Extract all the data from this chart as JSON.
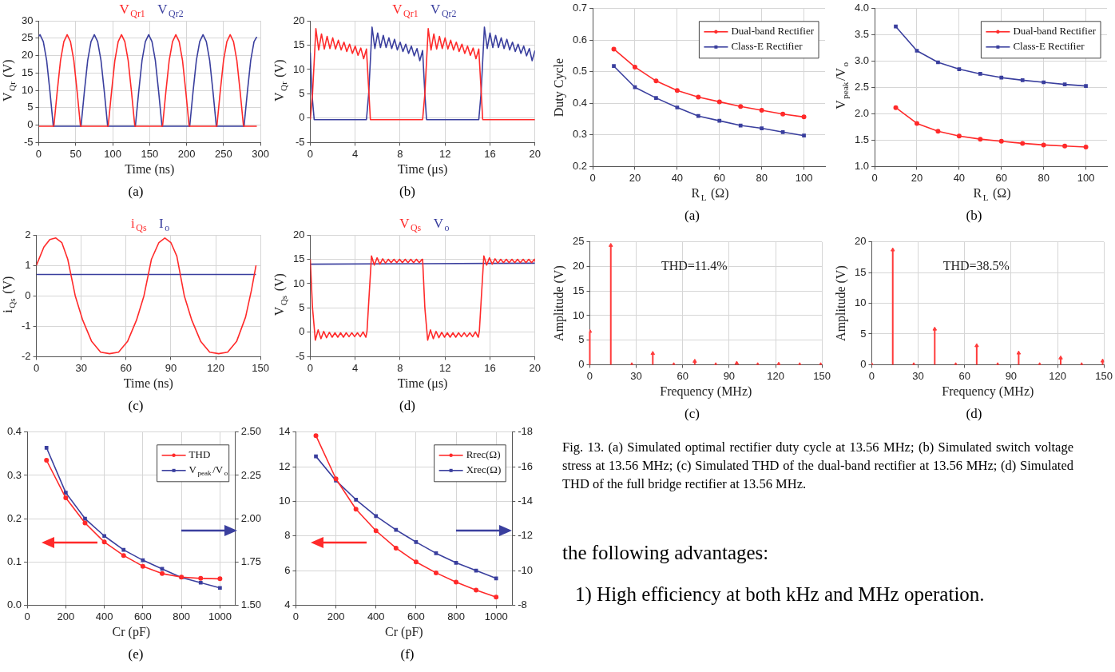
{
  "chart_data": [
    {
      "type": "line",
      "xlabel": "Time (ns)",
      "ylabel": "V$_{Qr}$ (V)",
      "subtitle": "(a)",
      "xlim": [
        0,
        300
      ],
      "xticks": [
        0,
        50,
        100,
        150,
        200,
        250,
        300
      ],
      "ylim": [
        -5,
        30
      ],
      "yticks": [
        -5,
        0,
        5,
        10,
        15,
        20,
        25,
        30
      ],
      "grid": true,
      "series": [
        {
          "name": "V$_{Qr1}$",
          "color": "#ff2a2a",
          "x": [
            0,
            20.5,
            25,
            29.5,
            34,
            38.5,
            43,
            47.5,
            52,
            56.5,
            94,
            98.5,
            103,
            107.5,
            112,
            116.5,
            121,
            125.5,
            130,
            167.5,
            172,
            176.5,
            181,
            185.5,
            190,
            194.5,
            199,
            203.5,
            241,
            245.5,
            250,
            254.5,
            259,
            263.5,
            268,
            272.5,
            277,
            295
          ],
          "values": [
            -0.3,
            -0.3,
            9.6,
            18.6,
            24,
            26,
            24,
            18.6,
            9.6,
            -0.3,
            -0.3,
            9.6,
            18.6,
            24,
            26,
            24,
            18.6,
            9.6,
            -0.3,
            -0.3,
            9.6,
            18.6,
            24,
            26,
            24,
            18.6,
            9.6,
            -0.3,
            -0.3,
            9.6,
            18.6,
            24,
            26,
            24,
            18.6,
            9.6,
            -0.3,
            -0.3
          ]
        },
        {
          "name": "V$_{Qr2}$",
          "color": "#3a3f9e",
          "x": [
            0,
            1.75,
            6.25,
            10.75,
            15.25,
            19.75,
            57.25,
            61.75,
            66.25,
            70.75,
            75.25,
            79.75,
            84.25,
            88.75,
            93.25,
            130.75,
            135.25,
            139.75,
            144.25,
            148.75,
            153.25,
            157.75,
            162.25,
            166.75,
            204.25,
            208.75,
            213.25,
            217.75,
            222.25,
            226.75,
            231.25,
            235.75,
            240.25,
            277.75,
            282.25,
            286.75,
            291.25,
            295
          ],
          "values": [
            25.5,
            26,
            24,
            18.6,
            9.6,
            -0.3,
            -0.3,
            9.6,
            18.6,
            24,
            26,
            24,
            18.6,
            9.6,
            -0.3,
            -0.3,
            9.6,
            18.6,
            24,
            26,
            24,
            18.6,
            9.6,
            -0.3,
            -0.3,
            9.6,
            18.6,
            24,
            26,
            24,
            18.6,
            9.6,
            -0.3,
            -0.3,
            9.6,
            18.6,
            24,
            25.4
          ]
        }
      ]
    },
    {
      "type": "line",
      "xlabel": "Time (μs)",
      "ylabel": "V$_{Qr}$ (V)",
      "subtitle": "(b)",
      "xlim": [
        0,
        20
      ],
      "xticks": [
        0,
        4,
        8,
        12,
        16,
        20
      ],
      "ylim": [
        -5,
        20
      ],
      "yticks": [
        -5,
        0,
        5,
        10,
        15,
        20
      ],
      "grid": true,
      "series": [
        {
          "name": "V$_{Qr1}$",
          "color": "#ff2a2a",
          "x": [
            0,
            0.2,
            0.5,
            0.75,
            1,
            1.25,
            1.5,
            1.75,
            2,
            2.25,
            2.5,
            2.75,
            3,
            3.25,
            3.5,
            3.75,
            4,
            4.25,
            4.5,
            4.75,
            5,
            5.2,
            5.35,
            10,
            10.2,
            10.5,
            10.75,
            11,
            11.25,
            11.5,
            11.75,
            12,
            12.25,
            12.5,
            12.75,
            13,
            13.25,
            13.5,
            13.75,
            14,
            14.25,
            14.5,
            14.75,
            15,
            15.2,
            15.35,
            20
          ],
          "values": [
            -0.3,
            5,
            18.4,
            14,
            17.3,
            14.2,
            16.8,
            14.3,
            16.5,
            14.2,
            16,
            14,
            15.6,
            13.7,
            15.2,
            13.3,
            14.8,
            12.9,
            14.4,
            12.2,
            14.2,
            6,
            -0.3,
            -0.3,
            5,
            18.4,
            14,
            17.3,
            14.2,
            16.8,
            14.3,
            16.5,
            14.2,
            16,
            14,
            15.6,
            13.7,
            15.2,
            13.3,
            14.8,
            12.9,
            14.4,
            12.2,
            14.2,
            6,
            -0.3,
            -0.3
          ]
        },
        {
          "name": "V$_{Qr2}$",
          "color": "#3a3f9e",
          "x": [
            0,
            0.15,
            0.35,
            5,
            5.2,
            5.5,
            5.75,
            6,
            6.25,
            6.5,
            6.75,
            7,
            7.25,
            7.5,
            7.75,
            8,
            8.25,
            8.5,
            8.75,
            9,
            9.25,
            9.5,
            9.75,
            10,
            10.2,
            10.35,
            15,
            15.2,
            15.5,
            15.75,
            16,
            16.25,
            16.5,
            16.75,
            17,
            17.25,
            17.5,
            17.75,
            18,
            18.25,
            18.5,
            18.75,
            19,
            19.25,
            19.5,
            19.75,
            20
          ],
          "values": [
            13.5,
            5,
            -0.3,
            -0.3,
            5,
            18.7,
            14.3,
            17.5,
            14.5,
            17,
            14.5,
            16.5,
            14.3,
            16.2,
            14,
            15.6,
            13.7,
            15.2,
            13.3,
            14.8,
            12.8,
            14.3,
            11.8,
            13.9,
            5,
            -0.3,
            -0.3,
            5,
            18.7,
            14.3,
            17.5,
            14.5,
            17,
            14.5,
            16.5,
            14.3,
            16.2,
            14,
            15.6,
            13.7,
            15.2,
            13.3,
            14.8,
            12.8,
            14.3,
            11.8,
            13.9
          ]
        }
      ]
    },
    {
      "type": "line",
      "xlabel": "Time (ns)",
      "ylabel": "i$_{Qs}$ (V)",
      "subtitle": "(c)",
      "xlim": [
        0,
        150
      ],
      "xticks": [
        0,
        30,
        60,
        90,
        120,
        150
      ],
      "ylim": [
        -2,
        2
      ],
      "yticks": [
        -2,
        -1,
        0,
        1,
        2
      ],
      "grid": true,
      "series": [
        {
          "name": "i$_{Qs}$",
          "color": "#ff2a2a",
          "x": [
            0,
            5,
            9,
            13,
            17,
            21,
            26,
            31,
            37,
            43,
            49,
            55,
            61,
            67,
            72,
            77,
            82,
            86,
            90,
            94,
            99,
            104,
            110,
            116,
            122,
            128,
            134,
            140,
            144,
            147
          ],
          "values": [
            1.0,
            1.6,
            1.85,
            1.9,
            1.75,
            1.2,
            0,
            -0.8,
            -1.5,
            -1.85,
            -1.9,
            -1.85,
            -1.5,
            -0.8,
            0,
            1.2,
            1.75,
            1.9,
            1.75,
            1.3,
            0,
            -0.8,
            -1.5,
            -1.85,
            -1.9,
            -1.85,
            -1.5,
            -0.7,
            0.2,
            1.0
          ]
        },
        {
          "name": "I$_{o}$",
          "color": "#3a3f9e",
          "x": [
            0,
            147
          ],
          "values": [
            0.7,
            0.7
          ]
        }
      ]
    },
    {
      "type": "line",
      "xlabel": "Time (μs)",
      "ylabel": "V$_{Qs}$ (V)",
      "subtitle": "(d)",
      "xlim": [
        0,
        20
      ],
      "xticks": [
        0,
        4,
        8,
        12,
        16,
        20
      ],
      "ylim": [
        -5,
        20
      ],
      "yticks": [
        -5,
        0,
        5,
        10,
        15,
        20
      ],
      "grid": true,
      "series": [
        {
          "name": "V$_{Qs}$",
          "color": "#ff2a2a",
          "x": [
            0,
            0.2,
            0.45,
            0.7,
            0.95,
            1.2,
            1.45,
            1.7,
            1.95,
            2.2,
            2.45,
            2.7,
            2.95,
            3.2,
            3.45,
            3.7,
            3.95,
            4.2,
            4.45,
            4.7,
            4.95,
            5.05,
            5.25,
            5.45,
            5.7,
            5.95,
            6.2,
            6.45,
            6.7,
            6.95,
            7.2,
            7.45,
            7.7,
            7.95,
            8.2,
            8.45,
            8.7,
            8.95,
            9.2,
            9.45,
            9.7,
            9.95,
            10,
            10.2,
            10.45,
            10.7,
            10.95,
            11.2,
            11.45,
            11.7,
            11.95,
            12.2,
            12.45,
            12.7,
            12.95,
            13.2,
            13.45,
            13.7,
            13.95,
            14.2,
            14.45,
            14.7,
            14.95,
            15.05,
            15.25,
            15.45,
            15.7,
            15.95,
            16.2,
            16.45,
            16.7,
            16.95,
            17.2,
            17.45,
            17.7,
            17.95,
            18.2,
            18.45,
            18.7,
            18.95,
            19.2,
            19.45,
            19.7,
            19.95,
            20
          ],
          "values": [
            15,
            5,
            -1.6,
            0.5,
            -1.3,
            0.2,
            -1.1,
            0,
            -1,
            -0.1,
            -1,
            -0.1,
            -1,
            -0.1,
            -0.9,
            -0.1,
            -0.9,
            -0.1,
            -0.9,
            0.1,
            -1.0,
            0.2,
            8,
            15.7,
            13.8,
            15.3,
            14,
            15.1,
            14.2,
            15,
            14.3,
            15,
            14.3,
            15,
            14.3,
            15,
            14.3,
            15,
            14.3,
            15,
            14.3,
            15,
            15,
            5,
            -1.6,
            0.5,
            -1.3,
            0.2,
            -1.1,
            0,
            -1,
            -0.1,
            -1,
            -0.1,
            -1,
            -0.1,
            -0.9,
            -0.1,
            -0.9,
            -0.1,
            -0.9,
            0.1,
            -1.0,
            0.2,
            8,
            15.7,
            13.8,
            15.3,
            14,
            15.1,
            14.2,
            15,
            14.3,
            15,
            14.3,
            15,
            14.3,
            15,
            14.3,
            15,
            14.3,
            15,
            14.3,
            15,
            14.6
          ]
        },
        {
          "name": "V$_{o}$",
          "color": "#3a3f9e",
          "x": [
            0,
            10,
            20
          ],
          "values": [
            14,
            14.1,
            14.2
          ]
        }
      ]
    },
    {
      "type": "line",
      "xlabel": "Cr (pF)",
      "subtitle": "(e)",
      "x": [
        100,
        200,
        300,
        400,
        500,
        600,
        700,
        800,
        900,
        1000
      ],
      "xlim": [
        0,
        1080
      ],
      "xticks": [
        0,
        200,
        400,
        600,
        800,
        1000
      ],
      "ylim": [
        0,
        0.4
      ],
      "yticks": [
        {
          "value": 0,
          "label": "0.0"
        },
        0.1,
        0.2,
        0.3,
        0.4
      ],
      "y2lim": [
        1.5,
        2.5
      ],
      "y2ticks": [
        {
          "value": 1.5,
          "label": "1.50"
        },
        1.75,
        {
          "value": 2,
          "label": "2.00"
        },
        2.25,
        {
          "value": 2.5,
          "label": "2.50"
        }
      ],
      "grid": true,
      "legend": "top right",
      "series": [
        {
          "name": "THD",
          "color": "#ff2a2a",
          "marker": "circle",
          "values": [
            0.335,
            0.248,
            0.19,
            0.146,
            0.115,
            0.09,
            0.073,
            0.065,
            0.062,
            0.061
          ]
        },
        {
          "name": "V$_{peak}$/V$_{o}$",
          "color": "#3a3f9e",
          "marker": "square",
          "axis": "y2",
          "values": [
            2.41,
            2.15,
            2.0,
            1.9,
            1.82,
            1.76,
            1.71,
            1.66,
            1.63,
            1.6
          ]
        }
      ]
    },
    {
      "type": "line",
      "xlabel": "Cr (pF)",
      "subtitle": "(f)",
      "x": [
        100,
        200,
        300,
        400,
        500,
        600,
        700,
        800,
        900,
        1000
      ],
      "xlim": [
        0,
        1080
      ],
      "xticks": [
        0,
        200,
        400,
        600,
        800,
        1000
      ],
      "ylim": [
        4,
        14
      ],
      "yticks": [
        4,
        6,
        8,
        10,
        12,
        14
      ],
      "y2lim": [
        -8,
        -18
      ],
      "y2ticks": [
        -8,
        -10,
        -12,
        -14,
        -16,
        -18
      ],
      "grid": true,
      "legend": "top right",
      "series": [
        {
          "name": "Rrec(Ω)",
          "color": "#ff2a2a",
          "marker": "circle",
          "values": [
            13.8,
            11.3,
            9.55,
            8.3,
            7.3,
            6.5,
            5.87,
            5.33,
            4.87,
            4.47
          ]
        },
        {
          "name": "Xrec(Ω)",
          "color": "#3a3f9e",
          "marker": "square",
          "axis": "y2",
          "values": [
            -16.6,
            -15.2,
            -14.1,
            -13.15,
            -12.35,
            -11.65,
            -11.0,
            -10.45,
            -10.0,
            -9.55
          ]
        }
      ]
    },
    {
      "type": "line",
      "xlabel": "R$_{L}$ (Ω)",
      "ylabel": "Duty Cycle",
      "subtitle": "(a)",
      "x": [
        10,
        20,
        30,
        40,
        50,
        60,
        70,
        80,
        90,
        100
      ],
      "xlim": [
        0,
        110
      ],
      "xticks": [
        0,
        20,
        40,
        60,
        80,
        100
      ],
      "ylim": [
        0.2,
        0.7
      ],
      "yticks": [
        0.2,
        0.3,
        0.4,
        0.5,
        0.6,
        0.7
      ],
      "grid": true,
      "legend": "top right",
      "series": [
        {
          "name": "Dual-band Rectifier",
          "color": "#ff2a2a",
          "marker": "circle",
          "values": [
            0.572,
            0.515,
            0.471,
            0.441,
            0.42,
            0.405,
            0.39,
            0.378,
            0.366,
            0.357
          ]
        },
        {
          "name": "Class-E Rectifier",
          "color": "#3a3f9e",
          "marker": "square",
          "values": [
            0.518,
            0.451,
            0.417,
            0.387,
            0.36,
            0.345,
            0.33,
            0.321,
            0.309,
            0.298
          ]
        }
      ]
    },
    {
      "type": "line",
      "xlabel": "R$_{L}$ (Ω)",
      "ylabel": "V$_{peak}$/V$_{o}$",
      "subtitle": "(b)",
      "x": [
        10,
        20,
        30,
        40,
        50,
        60,
        70,
        80,
        90,
        100
      ],
      "xlim": [
        0,
        110
      ],
      "xticks": [
        0,
        20,
        40,
        60,
        80,
        100
      ],
      "ylim": [
        1,
        4
      ],
      "yticks": [
        {
          "value": 1,
          "label": "1.0"
        },
        1.5,
        {
          "value": 2,
          "label": "2.0"
        },
        2.5,
        {
          "value": 3,
          "label": "3.0"
        },
        3.5,
        {
          "value": 4,
          "label": "4.0"
        }
      ],
      "grid": true,
      "legend": "top right",
      "series": [
        {
          "name": "Dual-band Rectifier",
          "color": "#ff2a2a",
          "marker": "circle",
          "values": [
            2.12,
            1.82,
            1.67,
            1.58,
            1.52,
            1.48,
            1.44,
            1.41,
            1.39,
            1.37
          ]
        },
        {
          "name": "Class-E Rectifier",
          "color": "#3a3f9e",
          "marker": "square",
          "values": [
            3.66,
            3.2,
            2.98,
            2.85,
            2.76,
            2.69,
            2.64,
            2.6,
            2.56,
            2.53
          ]
        }
      ]
    },
    {
      "type": "lollipop",
      "marker": "triangle",
      "xlabel": "Frequency (MHz)",
      "ylabel": "Amplitude (V)",
      "subtitle": "(c)",
      "annotations": [
        "THD=11.4%"
      ],
      "x": [
        0,
        13.56,
        27.12,
        40.68,
        54.24,
        67.8,
        81.36,
        94.92,
        108.48,
        122.04,
        135.6,
        149.16
      ],
      "xlim": [
        0,
        150
      ],
      "xticks": [
        0,
        30,
        60,
        90,
        120,
        150
      ],
      "ylim": [
        0,
        25
      ],
      "yticks": [
        0,
        5,
        10,
        15,
        20,
        25
      ],
      "grid": true,
      "color": "#ff3b3b",
      "values": [
        6.8,
        24.3,
        0,
        2.3,
        0,
        0.7,
        0,
        0.3,
        0,
        0.1,
        0,
        0
      ]
    },
    {
      "type": "lollipop",
      "marker": "triangle",
      "xlabel": "Frequency (MHz)",
      "ylabel": "Amplitude (V)",
      "subtitle": "(d)",
      "annotations": [
        "THD=38.5%"
      ],
      "x": [
        0,
        13.56,
        27.12,
        40.68,
        54.24,
        67.8,
        81.36,
        94.92,
        108.48,
        122.04,
        135.6,
        149.16
      ],
      "xlim": [
        0,
        150
      ],
      "xticks": [
        0,
        30,
        60,
        90,
        120,
        150
      ],
      "ylim": [
        0,
        20
      ],
      "yticks": [
        0,
        5,
        10,
        15,
        20
      ],
      "grid": true,
      "color": "#ff3b3b",
      "values": [
        0,
        18.7,
        0,
        5.8,
        0,
        3.1,
        0,
        1.9,
        0,
        1.1,
        0,
        0.6
      ]
    },
    {
      "type": "other",
      "annotations": [
        "Fig. 13.  (a) Simulated optimal rectifier duty cycle at 13.56 MHz; (b) Simulated switch voltage stress at 13.56 MHz; (c) Simulated THD of the dual-band rectifier at 13.56 MHz; (d) Simulated THD of the full bridge rectifier at 13.56 MHz.",
        "the following advantages:",
        "1)  High efficiency at both kHz and MHz operation."
      ]
    }
  ]
}
